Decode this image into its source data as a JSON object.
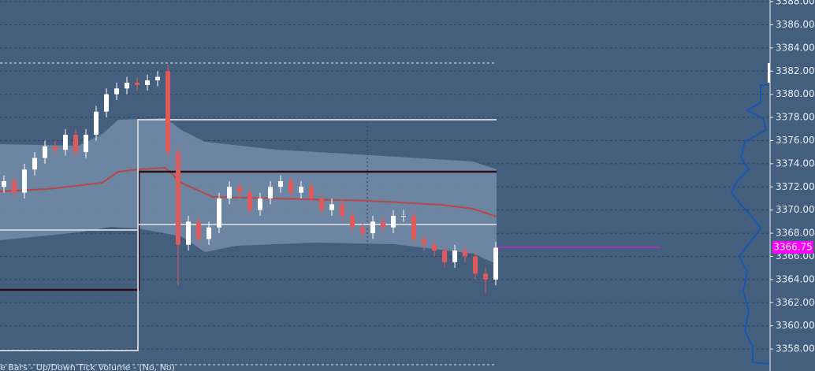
{
  "chart_data": {
    "type": "candlestick",
    "footer": "e Bars - Up/Down Tick Volume - (No, No)",
    "last_price": {
      "value": 3366.75,
      "label": "3366.75"
    },
    "up_color": "#ffffff",
    "down_color": "#e05a5a",
    "grid": true,
    "ylim": [
      3356.1,
      3388.14
    ],
    "yticks": [
      {
        "value": 3358,
        "label": "3358.00"
      },
      {
        "value": 3360,
        "label": "3360.00"
      },
      {
        "value": 3362,
        "label": "3362.00"
      },
      {
        "value": 3364,
        "label": "3364.00"
      },
      {
        "value": 3366,
        "label": "3366.00"
      },
      {
        "value": 3368,
        "label": "3368.00"
      },
      {
        "value": 3370,
        "label": "3370.00"
      },
      {
        "value": 3372,
        "label": "3372.00"
      },
      {
        "value": 3374,
        "label": "3374.00"
      },
      {
        "value": 3376,
        "label": "3376.00"
      },
      {
        "value": 3378,
        "label": "3378.00"
      },
      {
        "value": 3380,
        "label": "3380.00"
      },
      {
        "value": 3382,
        "label": "3382.00"
      },
      {
        "value": 3384,
        "label": "3384.00"
      },
      {
        "value": 3386,
        "label": "3386.00"
      },
      {
        "value": 3388,
        "label": "3388.00"
      }
    ],
    "open": [
      3372.0,
      3372.5,
      3371.5,
      3373.5,
      3374.5,
      3375.5,
      3375.2,
      3376.5,
      3375.0,
      3376.5,
      3378.5,
      3380.0,
      3380.5,
      3381.0,
      3380.8,
      3381.2,
      3382.0,
      3375.0,
      3367.0,
      3369.0,
      3367.5,
      3368.5,
      3371.0,
      3372.0,
      3371.5,
      3370.0,
      3371.0,
      3372.0,
      3372.5,
      3371.5,
      3372.0,
      3371.0,
      3370.0,
      3370.5,
      3369.5,
      3368.5,
      3368.0,
      3369.0,
      3368.5,
      3369.5,
      3369.5,
      3367.5,
      3367.0,
      3366.5,
      3365.5,
      3366.5,
      3366.0,
      3364.5,
      3364.0
    ],
    "high": [
      3373.0,
      3373.0,
      3374.0,
      3375.0,
      3376.0,
      3376.0,
      3377.0,
      3377.0,
      3377.0,
      3379.0,
      3380.5,
      3381.0,
      3381.5,
      3381.5,
      3381.7,
      3382.0,
      3382.5,
      3375.5,
      3369.5,
      3369.5,
      3369.0,
      3371.5,
      3372.5,
      3372.5,
      3372.0,
      3371.5,
      3372.5,
      3373.0,
      3373.0,
      3372.5,
      3372.5,
      3371.5,
      3371.0,
      3371.0,
      3370.0,
      3369.0,
      3369.5,
      3369.5,
      3370.0,
      3370.0,
      3370.0,
      3368.0,
      3367.5,
      3367.0,
      3367.0,
      3367.0,
      3366.5,
      3365.0,
      3367.25
    ],
    "low": [
      3371.5,
      3371.0,
      3371.0,
      3373.0,
      3374.0,
      3374.7,
      3374.7,
      3374.5,
      3374.5,
      3376.0,
      3378.0,
      3379.5,
      3380.0,
      3380.3,
      3380.3,
      3380.7,
      3374.5,
      3363.5,
      3366.5,
      3367.0,
      3367.0,
      3368.0,
      3370.5,
      3371.0,
      3369.5,
      3369.5,
      3370.5,
      3371.5,
      3371.0,
      3371.0,
      3370.5,
      3369.5,
      3369.5,
      3369.0,
      3368.0,
      3367.5,
      3367.5,
      3368.0,
      3368.0,
      3369.0,
      3367.0,
      3366.5,
      3366.0,
      3365.0,
      3365.0,
      3365.5,
      3364.0,
      3362.8,
      3363.5
    ],
    "close": [
      3372.5,
      3371.5,
      3373.5,
      3374.5,
      3375.5,
      3375.2,
      3376.5,
      3375.0,
      3376.5,
      3378.5,
      3380.0,
      3380.5,
      3381.0,
      3380.8,
      3381.2,
      3381.5,
      3375.0,
      3367.0,
      3369.0,
      3367.5,
      3368.5,
      3371.0,
      3372.0,
      3371.5,
      3370.0,
      3371.0,
      3372.0,
      3372.5,
      3371.5,
      3372.0,
      3371.0,
      3370.0,
      3370.5,
      3369.5,
      3368.5,
      3368.0,
      3369.0,
      3368.5,
      3369.5,
      3369.5,
      3367.5,
      3367.0,
      3366.5,
      3365.5,
      3366.5,
      3366.0,
      3364.5,
      3364.0,
      3366.75
    ]
  }
}
